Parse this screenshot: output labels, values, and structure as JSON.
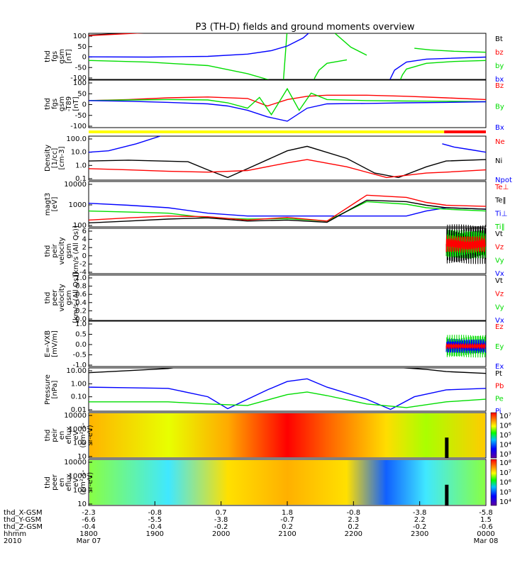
{
  "title": "P3 (TH-D) fields and ground moments overview",
  "colors": {
    "black": "#000000",
    "red": "#ff0000",
    "green": "#00dd00",
    "blue": "#0000ff",
    "yellow": "#ffff00",
    "bar_red": "#ff0000"
  },
  "chart_data": [
    {
      "id": "fgs",
      "type": "line",
      "ylabel": [
        "thd",
        "fgs",
        "gsm",
        "[nT]"
      ],
      "yticks": [
        "100",
        "50",
        "0",
        "-50",
        "-100"
      ],
      "ylim": [
        -100,
        100
      ],
      "legend": [
        {
          "name": "Bt",
          "color": "#000000"
        },
        {
          "name": "bz",
          "color": "#ff0000"
        },
        {
          "name": "by",
          "color": "#00dd00"
        },
        {
          "name": "bx",
          "color": "#0000ff"
        }
      ],
      "series": [
        {
          "name": "Bt",
          "color": "#000000",
          "x": [
            0,
            0.15
          ],
          "y": [
            92,
            105
          ]
        },
        {
          "name": "bz",
          "color": "#ff0000",
          "x": [
            0,
            0.15
          ],
          "y": [
            90,
            103
          ]
        },
        {
          "name": "by",
          "color": "#00dd00",
          "x": [
            0,
            0.15,
            0.3,
            0.4,
            0.45,
            0.47,
            0.48,
            0.49,
            0.5
          ],
          "y": [
            -18,
            -25,
            -40,
            -75,
            -100,
            -110,
            -130,
            -110,
            120
          ]
        },
        {
          "name": "bx",
          "color": "#0000ff",
          "x": [
            0,
            0.15,
            0.3,
            0.4,
            0.46,
            0.5,
            0.54,
            0.56,
            0.575
          ],
          "y": [
            -2,
            -3,
            0,
            10,
            25,
            45,
            80,
            110,
            140
          ]
        },
        {
          "name": "bx-right",
          "color": "#0000ff",
          "x": [
            0.75,
            0.76,
            0.77,
            0.8,
            0.85,
            1.0
          ],
          "y": [
            -140,
            -95,
            -60,
            -25,
            -12,
            -3
          ]
        },
        {
          "name": "by-right",
          "color": "#00dd00",
          "x": [
            0.78,
            0.79,
            0.8,
            0.85,
            0.92,
            1.0
          ],
          "y": [
            -120,
            -80,
            -55,
            -30,
            -22,
            -18
          ]
        },
        {
          "name": "by-mid",
          "color": "#00dd00",
          "x": [
            0.56,
            0.57,
            0.58,
            0.6,
            0.65
          ],
          "y": [
            -130,
            -90,
            -60,
            -30,
            -15
          ]
        },
        {
          "name": "by-end",
          "color": "#00dd00",
          "x": [
            0.82,
            0.86,
            0.92,
            1.0
          ],
          "y": [
            35,
            28,
            22,
            18
          ]
        },
        {
          "name": "by-midlow",
          "color": "#00dd00",
          "x": [
            0.62,
            0.66,
            0.7
          ],
          "y": [
            100,
            40,
            5
          ]
        }
      ]
    },
    {
      "id": "fgs_t89",
      "type": "line",
      "ylabel": [
        "thd",
        "fgs",
        "gsm",
        "-T89",
        "[nT]"
      ],
      "yticks": [
        "100",
        "50",
        "0",
        "-50",
        "-100"
      ],
      "ylim": [
        -120,
        100
      ],
      "legend": [
        {
          "name": "Bz",
          "color": "#ff0000"
        },
        {
          "name": "By",
          "color": "#00dd00"
        },
        {
          "name": "Bx",
          "color": "#0000ff"
        }
      ],
      "series": [
        {
          "name": "Bz",
          "color": "#ff0000",
          "x": [
            0,
            0.1,
            0.2,
            0.3,
            0.4,
            0.45,
            0.5,
            0.55,
            0.6,
            0.7,
            0.8,
            0.9,
            1.0
          ],
          "y": [
            5,
            10,
            18,
            22,
            15,
            -20,
            10,
            25,
            30,
            30,
            25,
            18,
            10
          ]
        },
        {
          "name": "By",
          "color": "#00dd00",
          "x": [
            0,
            0.1,
            0.2,
            0.3,
            0.35,
            0.4,
            0.43,
            0.46,
            0.5,
            0.53,
            0.56,
            0.6,
            0.7,
            0.8,
            0.9,
            1.0
          ],
          "y": [
            5,
            8,
            10,
            8,
            -5,
            -30,
            20,
            -60,
            60,
            -40,
            40,
            10,
            5,
            3,
            2,
            0
          ]
        },
        {
          "name": "Bx",
          "color": "#0000ff",
          "x": [
            0,
            0.1,
            0.2,
            0.3,
            0.35,
            0.4,
            0.45,
            0.5,
            0.55,
            0.6,
            0.7,
            0.8,
            0.9,
            1.0
          ],
          "y": [
            5,
            2,
            -3,
            -10,
            -20,
            -40,
            -70,
            -90,
            -30,
            -10,
            -8,
            -5,
            -3,
            0
          ]
        }
      ]
    },
    {
      "id": "density",
      "type": "line",
      "ylabel": [
        "Density",
        "[1/cc]",
        "[cm-3]"
      ],
      "yticks": [
        "100.0",
        "10.0",
        "1.0",
        "0.1"
      ],
      "ylim": [
        0.1,
        100
      ],
      "log": true,
      "legend": [
        {
          "name": "Ne",
          "color": "#ff0000"
        },
        {
          "name": "Ni",
          "color": "#000000"
        },
        {
          "name": "Npot",
          "color": "#0000ff"
        }
      ],
      "series": [
        {
          "name": "Npot",
          "color": "#0000ff",
          "x": [
            0,
            0.05,
            0.12,
            0.18,
            0.2
          ],
          "y": [
            8,
            10,
            30,
            100,
            200
          ]
        },
        {
          "name": "Npot-right",
          "color": "#0000ff",
          "x": [
            0.89,
            0.92,
            0.96,
            1.0
          ],
          "y": [
            30,
            18,
            12,
            8
          ]
        },
        {
          "name": "Ni",
          "color": "#000000",
          "x": [
            0,
            0.1,
            0.25,
            0.3,
            0.35,
            0.4,
            0.5,
            0.55,
            0.65,
            0.72,
            0.78,
            0.85,
            0.9,
            1.0
          ],
          "y": [
            2,
            2.3,
            1.8,
            0.5,
            0.15,
            0.6,
            10,
            20,
            3,
            0.3,
            0.15,
            0.8,
            2,
            2.5
          ]
        },
        {
          "name": "Ne",
          "color": "#ff0000",
          "x": [
            0,
            0.1,
            0.2,
            0.3,
            0.4,
            0.5,
            0.55,
            0.65,
            0.75,
            0.85,
            0.9,
            1.0
          ],
          "y": [
            0.6,
            0.5,
            0.4,
            0.35,
            0.45,
            1.5,
            2.5,
            0.8,
            0.15,
            0.3,
            0.35,
            0.5
          ]
        }
      ]
    },
    {
      "id": "temperature",
      "type": "line",
      "ylabel": [
        "magt3",
        "[eV]"
      ],
      "yticks": [
        "10000",
        "1000",
        "100"
      ],
      "ylim": [
        100,
        10000
      ],
      "log": true,
      "legend": [
        {
          "name": "Te⊥",
          "color": "#ff0000"
        },
        {
          "name": "Te‖",
          "color": "#000000"
        },
        {
          "name": "Ti⊥",
          "color": "#0000ff"
        },
        {
          "name": "Ti‖",
          "color": "#00dd00"
        }
      ],
      "series": [
        {
          "name": "Ti⊥",
          "color": "#0000ff",
          "x": [
            0,
            0.1,
            0.2,
            0.3,
            0.4,
            0.5,
            0.6,
            0.7,
            0.8,
            0.85,
            0.9,
            1.0
          ],
          "y": [
            1100,
            900,
            700,
            400,
            300,
            300,
            300,
            300,
            300,
            500,
            700,
            600
          ]
        },
        {
          "name": "Ti‖",
          "color": "#00dd00",
          "x": [
            0,
            0.1,
            0.2,
            0.3,
            0.4,
            0.5,
            0.6,
            0.7,
            0.8,
            0.85,
            0.9,
            1.0
          ],
          "y": [
            500,
            450,
            400,
            250,
            220,
            230,
            180,
            1300,
            1000,
            700,
            600,
            500
          ]
        },
        {
          "name": "Te‖",
          "color": "#000000",
          "x": [
            0,
            0.1,
            0.2,
            0.3,
            0.4,
            0.5,
            0.6,
            0.7,
            0.8,
            0.85,
            0.9,
            1.0
          ],
          "y": [
            150,
            180,
            220,
            250,
            180,
            200,
            160,
            1500,
            1300,
            900,
            700,
            600
          ]
        },
        {
          "name": "Te⊥",
          "color": "#ff0000",
          "x": [
            0,
            0.1,
            0.2,
            0.3,
            0.4,
            0.5,
            0.6,
            0.7,
            0.8,
            0.85,
            0.9,
            1.0
          ],
          "y": [
            200,
            250,
            300,
            280,
            200,
            260,
            180,
            2500,
            2000,
            1200,
            900,
            800
          ]
        }
      ]
    },
    {
      "id": "peir_velocity",
      "type": "line",
      "ylabel": [
        "thd",
        "peir",
        "velocity",
        "gsm",
        "[km/s (All Qs)]"
      ],
      "yticks": [
        "6",
        "4",
        "2",
        "0",
        "-2",
        "-4"
      ],
      "ylim": [
        -4,
        6
      ],
      "legend": [
        {
          "name": "Vt",
          "color": "#000000"
        },
        {
          "name": "Vz",
          "color": "#ff0000"
        },
        {
          "name": "Vy",
          "color": "#00dd00"
        },
        {
          "name": "Vx",
          "color": "#0000ff"
        }
      ],
      "series": []
    },
    {
      "id": "peer_velocity",
      "type": "line",
      "ylabel": [
        "thd",
        "peer",
        "velocity",
        "gsm",
        "[km/s (All Qs)]"
      ],
      "yticks": [
        "1.0",
        "0.8",
        "0.6",
        "0.4",
        "0.2",
        "0.0"
      ],
      "ylim": [
        0,
        1
      ],
      "legend": [
        {
          "name": "Vt",
          "color": "#000000"
        },
        {
          "name": "Vz",
          "color": "#ff0000"
        },
        {
          "name": "Vy",
          "color": "#00dd00"
        },
        {
          "name": "Vx",
          "color": "#0000ff"
        }
      ],
      "series": []
    },
    {
      "id": "efield",
      "type": "line",
      "ylabel": [
        "E=-VXB",
        "[mV/m]"
      ],
      "yticks": [
        "1.0",
        "0.5",
        "0.0",
        "-0.5",
        "-1.0"
      ],
      "ylim": [
        -1,
        1
      ],
      "legend": [
        {
          "name": "Ez",
          "color": "#ff0000"
        },
        {
          "name": "Ey",
          "color": "#00dd00"
        },
        {
          "name": "Ex",
          "color": "#0000ff"
        }
      ],
      "series": []
    },
    {
      "id": "pressure",
      "type": "line",
      "ylabel": [
        "Pressure",
        "[nPa]"
      ],
      "yticks": [
        "10.00",
        "1.00",
        "0.10",
        "0.01"
      ],
      "ylim": [
        0.005,
        20
      ],
      "log": true,
      "legend": [
        {
          "name": "Pt",
          "color": "#000000"
        },
        {
          "name": "Pb",
          "color": "#ff0000"
        },
        {
          "name": "Pe",
          "color": "#00dd00"
        },
        {
          "name": "Pi",
          "color": "#0000ff"
        }
      ],
      "series": [
        {
          "name": "Pt",
          "color": "#000000",
          "x": [
            0,
            0.1,
            0.2,
            0.22,
            0.78,
            0.85,
            0.9,
            1.0
          ],
          "y": [
            8,
            12,
            18,
            22,
            22,
            15,
            10,
            7
          ]
        },
        {
          "name": "Pi",
          "color": "#0000ff",
          "x": [
            0,
            0.1,
            0.2,
            0.3,
            0.35,
            0.4,
            0.45,
            0.5,
            0.55,
            0.6,
            0.7,
            0.76,
            0.82,
            0.9,
            1.0
          ],
          "y": [
            0.5,
            0.45,
            0.4,
            0.08,
            0.008,
            0.05,
            0.3,
            1.5,
            2.5,
            0.5,
            0.05,
            0.007,
            0.08,
            0.3,
            0.4
          ]
        },
        {
          "name": "Pe",
          "color": "#00dd00",
          "x": [
            0,
            0.1,
            0.2,
            0.3,
            0.4,
            0.5,
            0.55,
            0.6,
            0.7,
            0.8,
            0.9,
            1.0
          ],
          "y": [
            0.03,
            0.03,
            0.03,
            0.02,
            0.015,
            0.12,
            0.2,
            0.1,
            0.02,
            0.01,
            0.03,
            0.05
          ]
        }
      ]
    },
    {
      "id": "peir_spec",
      "type": "heatmap",
      "ylabel": [
        "thd",
        "peir",
        "en",
        "eflux",
        "eV",
        "(cm²-s-",
        "sr-eV)"
      ],
      "yticks": [
        "10000",
        "1000",
        "100",
        "10"
      ],
      "colorbar": [
        "10⁷",
        "10⁶",
        "10⁵",
        "10⁴",
        "10³"
      ]
    },
    {
      "id": "peer_spec",
      "type": "heatmap",
      "ylabel": [
        "thd",
        "peer",
        "en",
        "eflux",
        "eV",
        "(cm²-s-",
        "sr-eV)"
      ],
      "yticks": [
        "10000",
        "1000",
        "100",
        "10"
      ],
      "colorbar": [
        "10⁸",
        "10⁷",
        "10⁶",
        "10⁵",
        "10⁴"
      ]
    }
  ],
  "x_axis": {
    "rows": [
      {
        "label": "thd_X-GSM",
        "values": [
          "-2.3",
          "-0.8",
          "0.7",
          "1.8",
          "-0.8",
          "-3.8",
          "-5.8"
        ]
      },
      {
        "label": "thd_Y-GSM",
        "values": [
          "-6.6",
          "-5.5",
          "-3.8",
          "-0.7",
          "2.3",
          "2.2",
          "1.5"
        ]
      },
      {
        "label": "thd_Z-GSM",
        "values": [
          "-0.4",
          "-0.4",
          "-0.2",
          "0.2",
          "0.2",
          "-0.2",
          "-0.6"
        ]
      },
      {
        "label": "hhmm",
        "values": [
          "1800",
          "1900",
          "2000",
          "2100",
          "2200",
          "2300",
          "0000"
        ]
      },
      {
        "label": "2010",
        "values": [
          "Mar 07",
          "",
          "",
          "",
          "",
          "",
          "Mar 08"
        ]
      }
    ]
  }
}
